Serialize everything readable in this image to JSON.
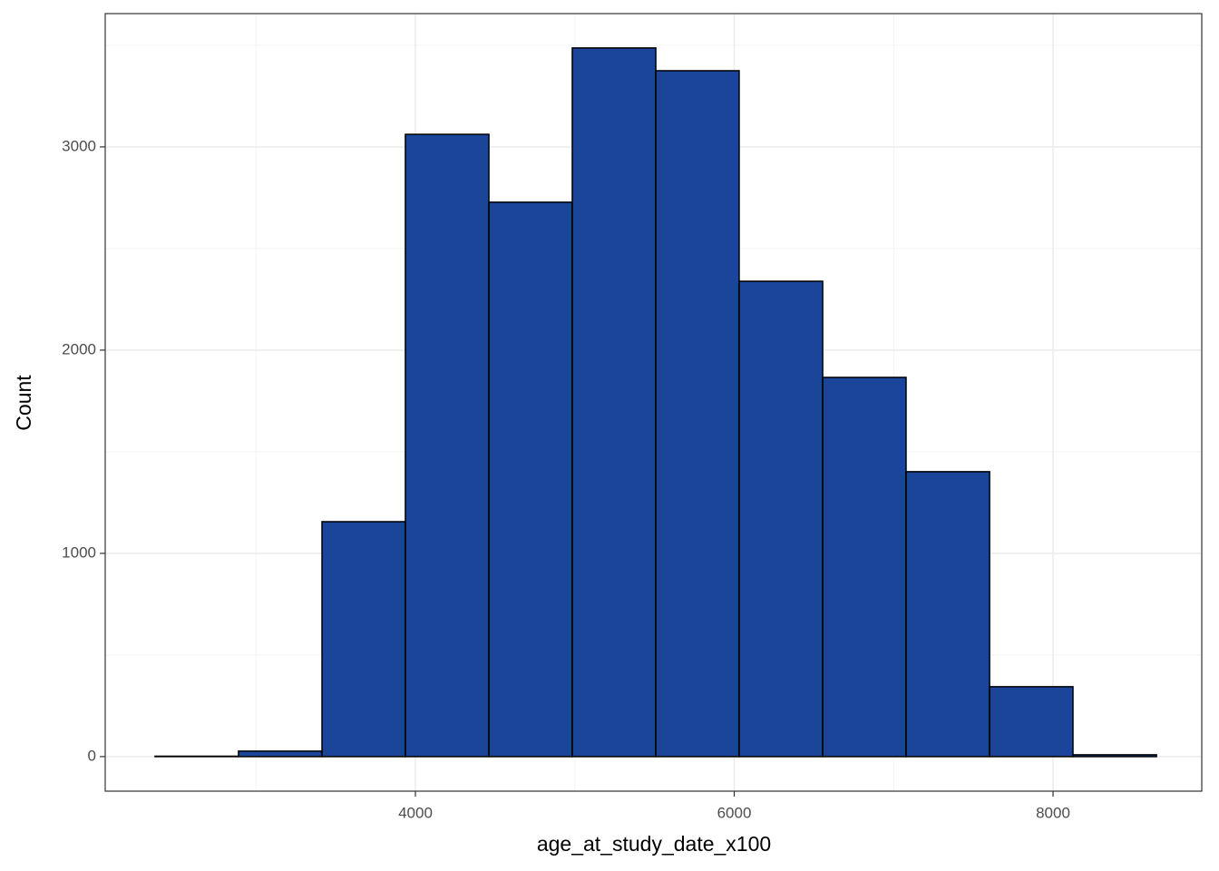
{
  "chart_data": {
    "type": "histogram",
    "x_label": "age_at_study_date_x100",
    "y_label": "Count",
    "bins": [
      2367,
      2890,
      3414,
      3937,
      4461,
      4984,
      5508,
      6031,
      6555,
      7078,
      7602,
      8125,
      8649
    ],
    "values": [
      2,
      27,
      1156,
      3062,
      2728,
      3487,
      3375,
      2339,
      1866,
      1402,
      344,
      9
    ],
    "color": "#1a4599",
    "edgecolor": "#000000",
    "xlim": [
      2054,
      8933
    ],
    "ylim": [
      -170,
      3656
    ],
    "xticks": [
      4000,
      6000,
      8000
    ],
    "yticks": [
      0,
      1000,
      2000,
      3000
    ],
    "xminor": [
      3000,
      5000,
      7000
    ],
    "yminor": [
      500,
      1500,
      2500,
      3500
    ],
    "grid": true
  }
}
